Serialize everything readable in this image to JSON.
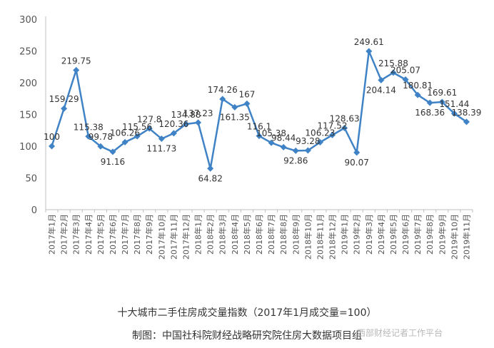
{
  "chart_data": {
    "type": "line",
    "categories": [
      "2017年1月",
      "2017年2月",
      "2017年3月",
      "2017年4月",
      "2017年5月",
      "2017年6月",
      "2017年7月",
      "2017年8月",
      "2017年9月",
      "2017年10月",
      "2017年11月",
      "2017年12月",
      "2018年1月",
      "2018年2月",
      "2018年3月",
      "2018年4月",
      "2018年5月",
      "2018年6月",
      "2018年7月",
      "2018年8月",
      "2018年9月",
      "2018年10月",
      "2018年11月",
      "2018年12月",
      "2019年1月",
      "2019年2月",
      "2019年3月",
      "2019年4月",
      "2019年5月",
      "2019年6月",
      "2019年7月",
      "2019年8月",
      "2019年9月",
      "2019年10月",
      "2019年11月"
    ],
    "values": [
      100,
      159.29,
      219.75,
      115.38,
      99.78,
      91.16,
      106.26,
      115.56,
      127.8,
      111.73,
      120.36,
      134.88,
      137.23,
      64.82,
      174.26,
      161.35,
      167,
      116.1,
      105.38,
      98.44,
      92.86,
      93.28,
      106.23,
      117.52,
      128.63,
      90.07,
      249.61,
      204.14,
      215.88,
      205.07,
      180.81,
      168.36,
      169.61,
      151.44,
      138.39
    ],
    "labels": [
      "100",
      "159.29",
      "219.75",
      "115.38",
      "99.78",
      "91.16",
      "106.26",
      "115.56",
      "127.8",
      "111.73",
      "120.36",
      "134.88",
      "137.23",
      "64.82",
      "174.26",
      "161.35",
      "167",
      "116.1",
      "105.38",
      "98.44",
      "92.86",
      "93.28",
      "106.23",
      "117.52",
      "128.63",
      "90.07",
      "249.61",
      "204.14",
      "215.88",
      "205.07",
      "180.81",
      "168.36",
      "169.61",
      "151.44",
      "138.39"
    ],
    "yticks": [
      "0",
      "50",
      "100",
      "150",
      "200",
      "250",
      "300"
    ],
    "ylim": [
      0,
      300
    ],
    "grid": false,
    "line_color": "#3f83c6"
  },
  "captions": {
    "title": "十大城市二手住房成交量指数（2017年1月成交量=100）",
    "source": "制图：中国社科院财经战略研究院住房大数据项目组"
  },
  "watermark": "西部财经记者工作平台"
}
